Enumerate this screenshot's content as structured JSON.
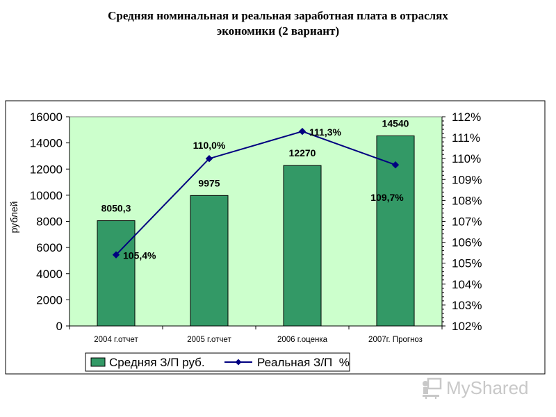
{
  "slide": {
    "title_line1": "Средняя номинальная и реальная заработная плата в отраслях",
    "title_line2": "экономики (2 вариант)"
  },
  "watermark": {
    "text": "MyShared",
    "icon": "teacher-board-icon"
  },
  "chart_data": {
    "type": "bar+line",
    "categories": [
      "2004 г.отчет",
      "2005 г.отчет",
      "2006 г.оценка",
      "2007г. Прогноз"
    ],
    "series": [
      {
        "name": "Средняя З/П руб.",
        "type": "bar",
        "axis": "left",
        "values": [
          8050.3,
          9975,
          12270,
          14540
        ],
        "labels": [
          "8050,3",
          "9975",
          "12270",
          "14540"
        ],
        "color": "#339966"
      },
      {
        "name": "Реальная З/П  %",
        "type": "line",
        "axis": "right",
        "values": [
          105.4,
          110.0,
          111.3,
          109.7
        ],
        "labels": [
          "105,4%",
          "110,0%",
          "111,3%",
          "109,7%"
        ],
        "color": "#000080"
      }
    ],
    "ylabel": "рублей",
    "ylim": [
      0,
      16000
    ],
    "y_ticks": [
      "0",
      "2000",
      "4000",
      "6000",
      "8000",
      "10000",
      "12000",
      "14000",
      "16000"
    ],
    "y2lim": [
      102,
      112
    ],
    "y2_ticks": [
      "102%",
      "103%",
      "104%",
      "105%",
      "106%",
      "107%",
      "108%",
      "109%",
      "110%",
      "111%",
      "112%"
    ],
    "plot_background": "#ccffcc",
    "grid": false,
    "legend_position": "bottom"
  }
}
